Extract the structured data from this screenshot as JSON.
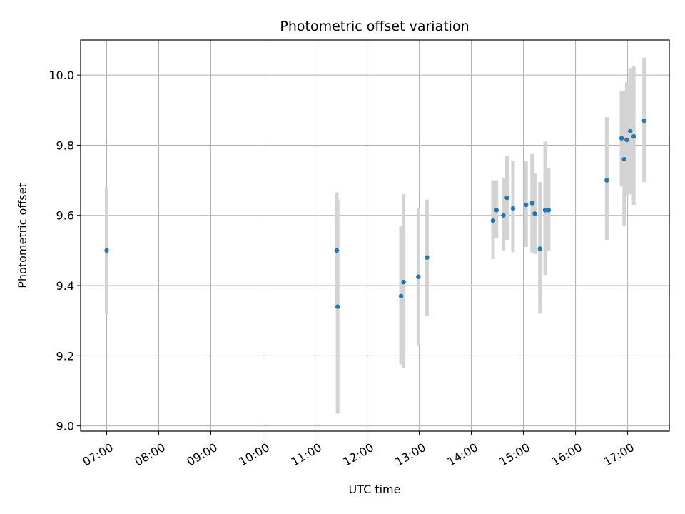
{
  "chart_data": {
    "type": "scatter",
    "title": "Photometric offset variation",
    "xlabel": "UTC time",
    "ylabel": "Photometric offset",
    "x_unit": "hours UTC",
    "xlim": [
      "06:30",
      "17:48"
    ],
    "ylim": [
      8.985,
      10.1
    ],
    "grid": true,
    "x_ticks": [
      "07:00",
      "08:00",
      "09:00",
      "10:00",
      "11:00",
      "12:00",
      "13:00",
      "14:00",
      "15:00",
      "16:00",
      "17:00"
    ],
    "y_ticks": [
      "9.0",
      "9.2",
      "9.4",
      "9.6",
      "9.8",
      "10.0"
    ],
    "point_color": "#1f77b4",
    "errorbar_color": "#d3d3d3",
    "series": [
      {
        "points": [
          {
            "x": "07:00",
            "y": 9.5,
            "lo": 9.32,
            "hi": 9.68
          },
          {
            "x": "11:25",
            "y": 9.5,
            "lo": 9.34,
            "hi": 9.665
          },
          {
            "x": "11:26",
            "y": 9.34,
            "lo": 9.035,
            "hi": 9.645
          },
          {
            "x": "12:39",
            "y": 9.37,
            "lo": 9.175,
            "hi": 9.57
          },
          {
            "x": "12:42",
            "y": 9.41,
            "lo": 9.165,
            "hi": 9.66
          },
          {
            "x": "12:59",
            "y": 9.425,
            "lo": 9.23,
            "hi": 9.62
          },
          {
            "x": "13:09",
            "y": 9.48,
            "lo": 9.315,
            "hi": 9.645
          },
          {
            "x": "14:25",
            "y": 9.585,
            "lo": 9.475,
            "hi": 9.7
          },
          {
            "x": "14:29",
            "y": 9.615,
            "lo": 9.535,
            "hi": 9.7
          },
          {
            "x": "14:37",
            "y": 9.6,
            "lo": 9.5,
            "hi": 9.705
          },
          {
            "x": "14:41",
            "y": 9.65,
            "lo": 9.53,
            "hi": 9.77
          },
          {
            "x": "14:48",
            "y": 9.62,
            "lo": 9.495,
            "hi": 9.755
          },
          {
            "x": "15:03",
            "y": 9.63,
            "lo": 9.51,
            "hi": 9.755
          },
          {
            "x": "15:10",
            "y": 9.635,
            "lo": 9.495,
            "hi": 9.775
          },
          {
            "x": "15:13",
            "y": 9.605,
            "lo": 9.49,
            "hi": 9.72
          },
          {
            "x": "15:19",
            "y": 9.505,
            "lo": 9.32,
            "hi": 9.695
          },
          {
            "x": "15:25",
            "y": 9.615,
            "lo": 9.43,
            "hi": 9.81
          },
          {
            "x": "15:29",
            "y": 9.615,
            "lo": 9.5,
            "hi": 9.735
          },
          {
            "x": "16:36",
            "y": 9.7,
            "lo": 9.53,
            "hi": 9.88
          },
          {
            "x": "16:53",
            "y": 9.82,
            "lo": 9.685,
            "hi": 9.955
          },
          {
            "x": "16:56",
            "y": 9.76,
            "lo": 9.57,
            "hi": 9.955
          },
          {
            "x": "16:59",
            "y": 9.815,
            "lo": 9.655,
            "hi": 9.98
          },
          {
            "x": "17:03",
            "y": 9.84,
            "lo": 9.66,
            "hi": 10.02
          },
          {
            "x": "17:07",
            "y": 9.825,
            "lo": 9.63,
            "hi": 10.025
          },
          {
            "x": "17:19",
            "y": 9.87,
            "lo": 9.695,
            "hi": 10.05
          }
        ]
      }
    ]
  }
}
